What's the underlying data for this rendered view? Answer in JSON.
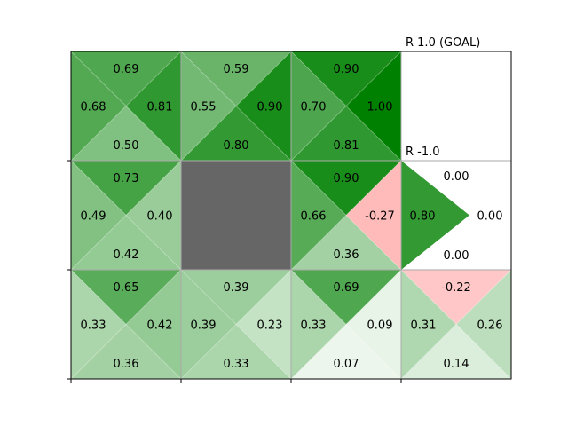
{
  "grid": {
    "rows": 3,
    "cols": 4,
    "colors": {
      "positive": "#008000",
      "negative": "#ff0000",
      "wall": "#666666",
      "terminal": "#ffffff"
    },
    "cells": [
      {
        "row": 0,
        "col": 0,
        "type": "state",
        "q": {
          "up": "0.69",
          "right": "0.81",
          "down": "0.50",
          "left": "0.68"
        }
      },
      {
        "row": 0,
        "col": 1,
        "type": "state",
        "q": {
          "up": "0.59",
          "right": "0.90",
          "down": "0.80",
          "left": "0.55"
        }
      },
      {
        "row": 0,
        "col": 2,
        "type": "state",
        "q": {
          "up": "0.90",
          "right": "1.00",
          "down": "0.81",
          "left": "0.70"
        }
      },
      {
        "row": 0,
        "col": 3,
        "type": "terminal",
        "label": "R 1.0 (GOAL)"
      },
      {
        "row": 1,
        "col": 0,
        "type": "state",
        "q": {
          "up": "0.73",
          "right": "0.40",
          "down": "0.42",
          "left": "0.49"
        }
      },
      {
        "row": 1,
        "col": 1,
        "type": "wall"
      },
      {
        "row": 1,
        "col": 2,
        "type": "state",
        "q": {
          "up": "0.90",
          "right": "-0.27",
          "down": "0.36",
          "left": "0.66"
        }
      },
      {
        "row": 1,
        "col": 3,
        "type": "terminal",
        "label": "R -1.0",
        "q": {
          "up": "0.00",
          "right": "0.00",
          "down": "0.00",
          "left": "0.80"
        }
      },
      {
        "row": 2,
        "col": 0,
        "type": "state",
        "q": {
          "up": "0.65",
          "right": "0.42",
          "down": "0.36",
          "left": "0.33"
        }
      },
      {
        "row": 2,
        "col": 1,
        "type": "state",
        "q": {
          "up": "0.39",
          "right": "0.23",
          "down": "0.33",
          "left": "0.39"
        }
      },
      {
        "row": 2,
        "col": 2,
        "type": "state",
        "q": {
          "up": "0.69",
          "right": "0.09",
          "down": "0.07",
          "left": "0.33"
        }
      },
      {
        "row": 2,
        "col": 3,
        "type": "state",
        "q": {
          "up": "-0.22",
          "right": "0.26",
          "down": "0.14",
          "left": "0.31"
        }
      }
    ]
  }
}
